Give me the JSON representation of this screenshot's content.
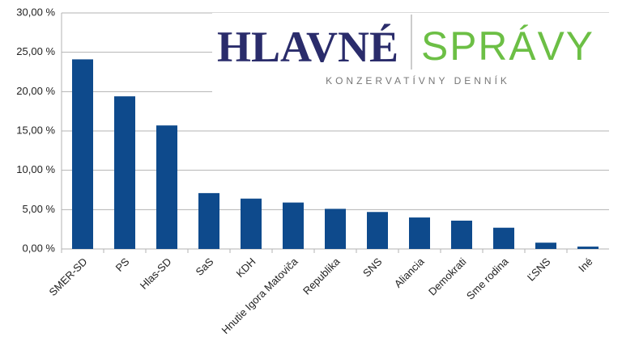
{
  "chart_data": {
    "type": "bar",
    "categories": [
      "SMER-SD",
      "PS",
      "Hlas-SD",
      "SaS",
      "KDH",
      "Hnutie Igora Matoviča",
      "Republika",
      "SNS",
      "Aliancia",
      "Demokrati",
      "Sme rodina",
      "ĽSNS",
      "Iné"
    ],
    "values": [
      24.1,
      19.4,
      15.7,
      7.1,
      6.4,
      5.9,
      5.1,
      4.7,
      4.0,
      3.6,
      2.7,
      0.8,
      0.3
    ],
    "color": "#0e4a8c",
    "ylim": [
      0,
      30
    ],
    "yticks": [
      {
        "value": 0,
        "label": "0,00 %"
      },
      {
        "value": 5,
        "label": "5,00 %"
      },
      {
        "value": 10,
        "label": "10,00 %"
      },
      {
        "value": 15,
        "label": "15,00 %"
      },
      {
        "value": 20,
        "label": "20,00 %"
      },
      {
        "value": 25,
        "label": "25,00 %"
      },
      {
        "value": 30,
        "label": "30,00 %"
      }
    ],
    "grid": true
  },
  "logo": {
    "name_left": "HLAVNÉ",
    "name_right": "SPRÁVY",
    "tagline": "KONZERVATÍVNY DENNÍK"
  }
}
